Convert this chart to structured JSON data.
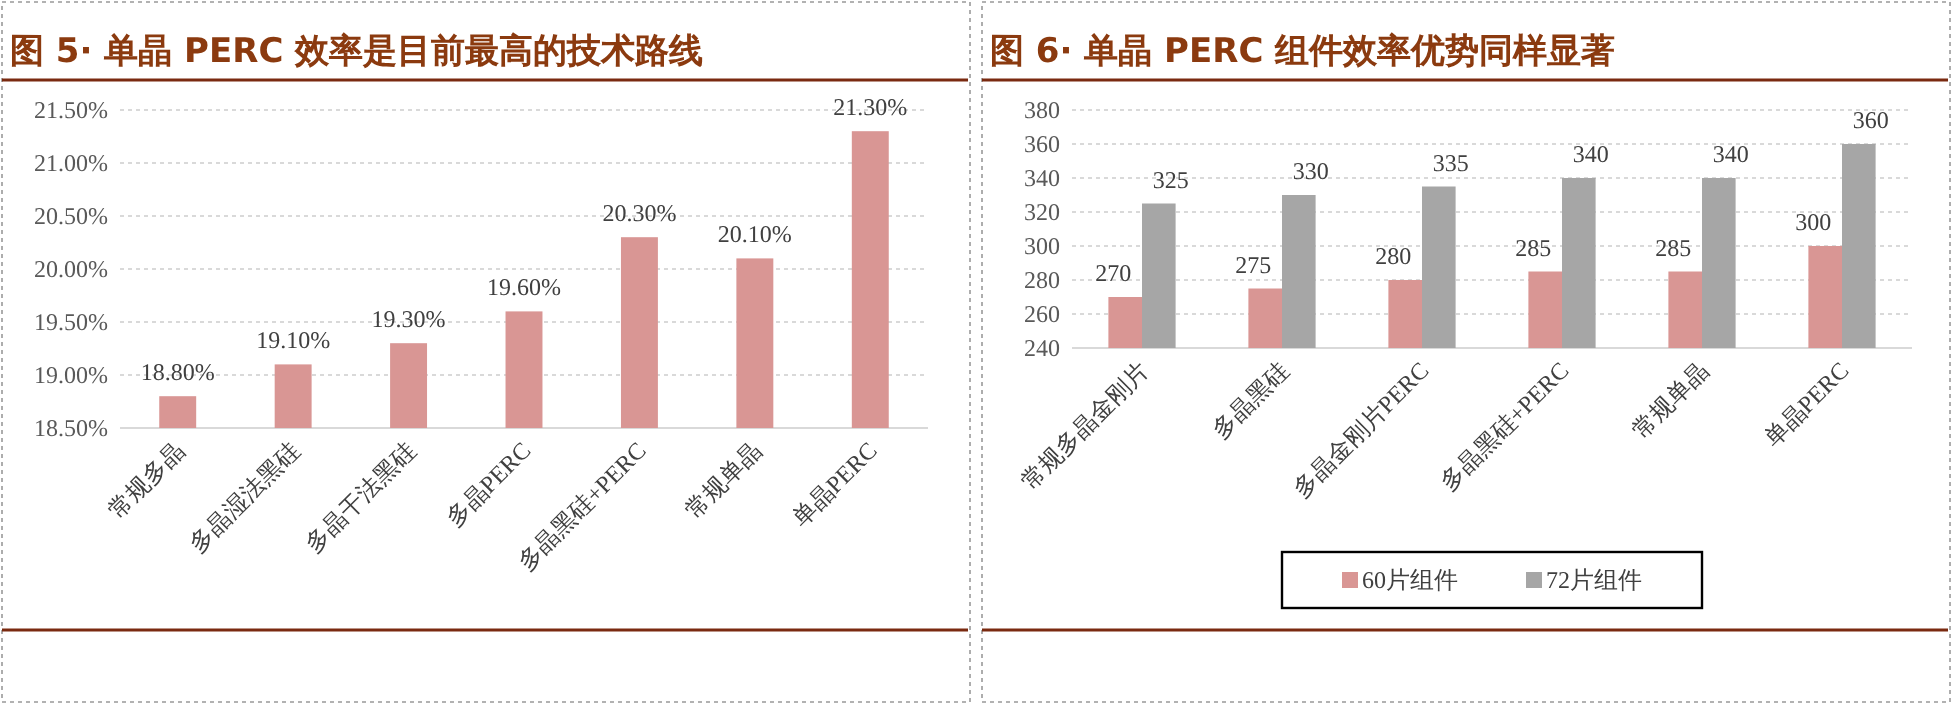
{
  "chart_data": [
    {
      "type": "bar",
      "title": "图 5· 单晶 PERC 效率是目前最高的技术路线",
      "categories": [
        "常规多晶",
        "多晶湿法黑硅",
        "多晶干法黑硅",
        "多晶PERC",
        "多晶黑硅+PERC",
        "常规单晶",
        "单晶PERC"
      ],
      "values": [
        18.8,
        19.1,
        19.3,
        19.6,
        20.3,
        20.1,
        21.3
      ],
      "value_labels": [
        "18.80%",
        "19.10%",
        "19.30%",
        "19.60%",
        "20.30%",
        "20.10%",
        "21.30%"
      ],
      "color": "#d99694",
      "ylim": [
        18.5,
        21.5
      ],
      "yticks": [
        {
          "value": 18.5,
          "label": "18.50%"
        },
        {
          "value": 19.0,
          "label": "19.00%"
        },
        {
          "value": 19.5,
          "label": "19.50%"
        },
        {
          "value": 20.0,
          "label": "20.00%"
        },
        {
          "value": 20.5,
          "label": "20.50%"
        },
        {
          "value": 21.0,
          "label": "21.00%"
        },
        {
          "value": 21.5,
          "label": "21.50%"
        }
      ],
      "grid": "y"
    },
    {
      "type": "bar",
      "title": "图 6· 单晶 PERC 组件效率优势同样显著",
      "categories": [
        "常规多晶金刚片",
        "多晶黑硅",
        "多晶金刚片PERC",
        "多晶黑硅+PERC",
        "常规单晶",
        "单晶PERC"
      ],
      "series": [
        {
          "name": "60片组件",
          "color": "#d99694",
          "values": [
            270,
            275,
            280,
            285,
            285,
            300
          ]
        },
        {
          "name": "72片组件",
          "color": "#a6a6a6",
          "values": [
            325,
            330,
            335,
            340,
            340,
            360
          ]
        }
      ],
      "ylim": [
        240,
        380
      ],
      "yticks": [
        240,
        260,
        280,
        300,
        320,
        340,
        360,
        380
      ],
      "grid": "y",
      "data_labels": true,
      "legend": "bottom"
    }
  ]
}
